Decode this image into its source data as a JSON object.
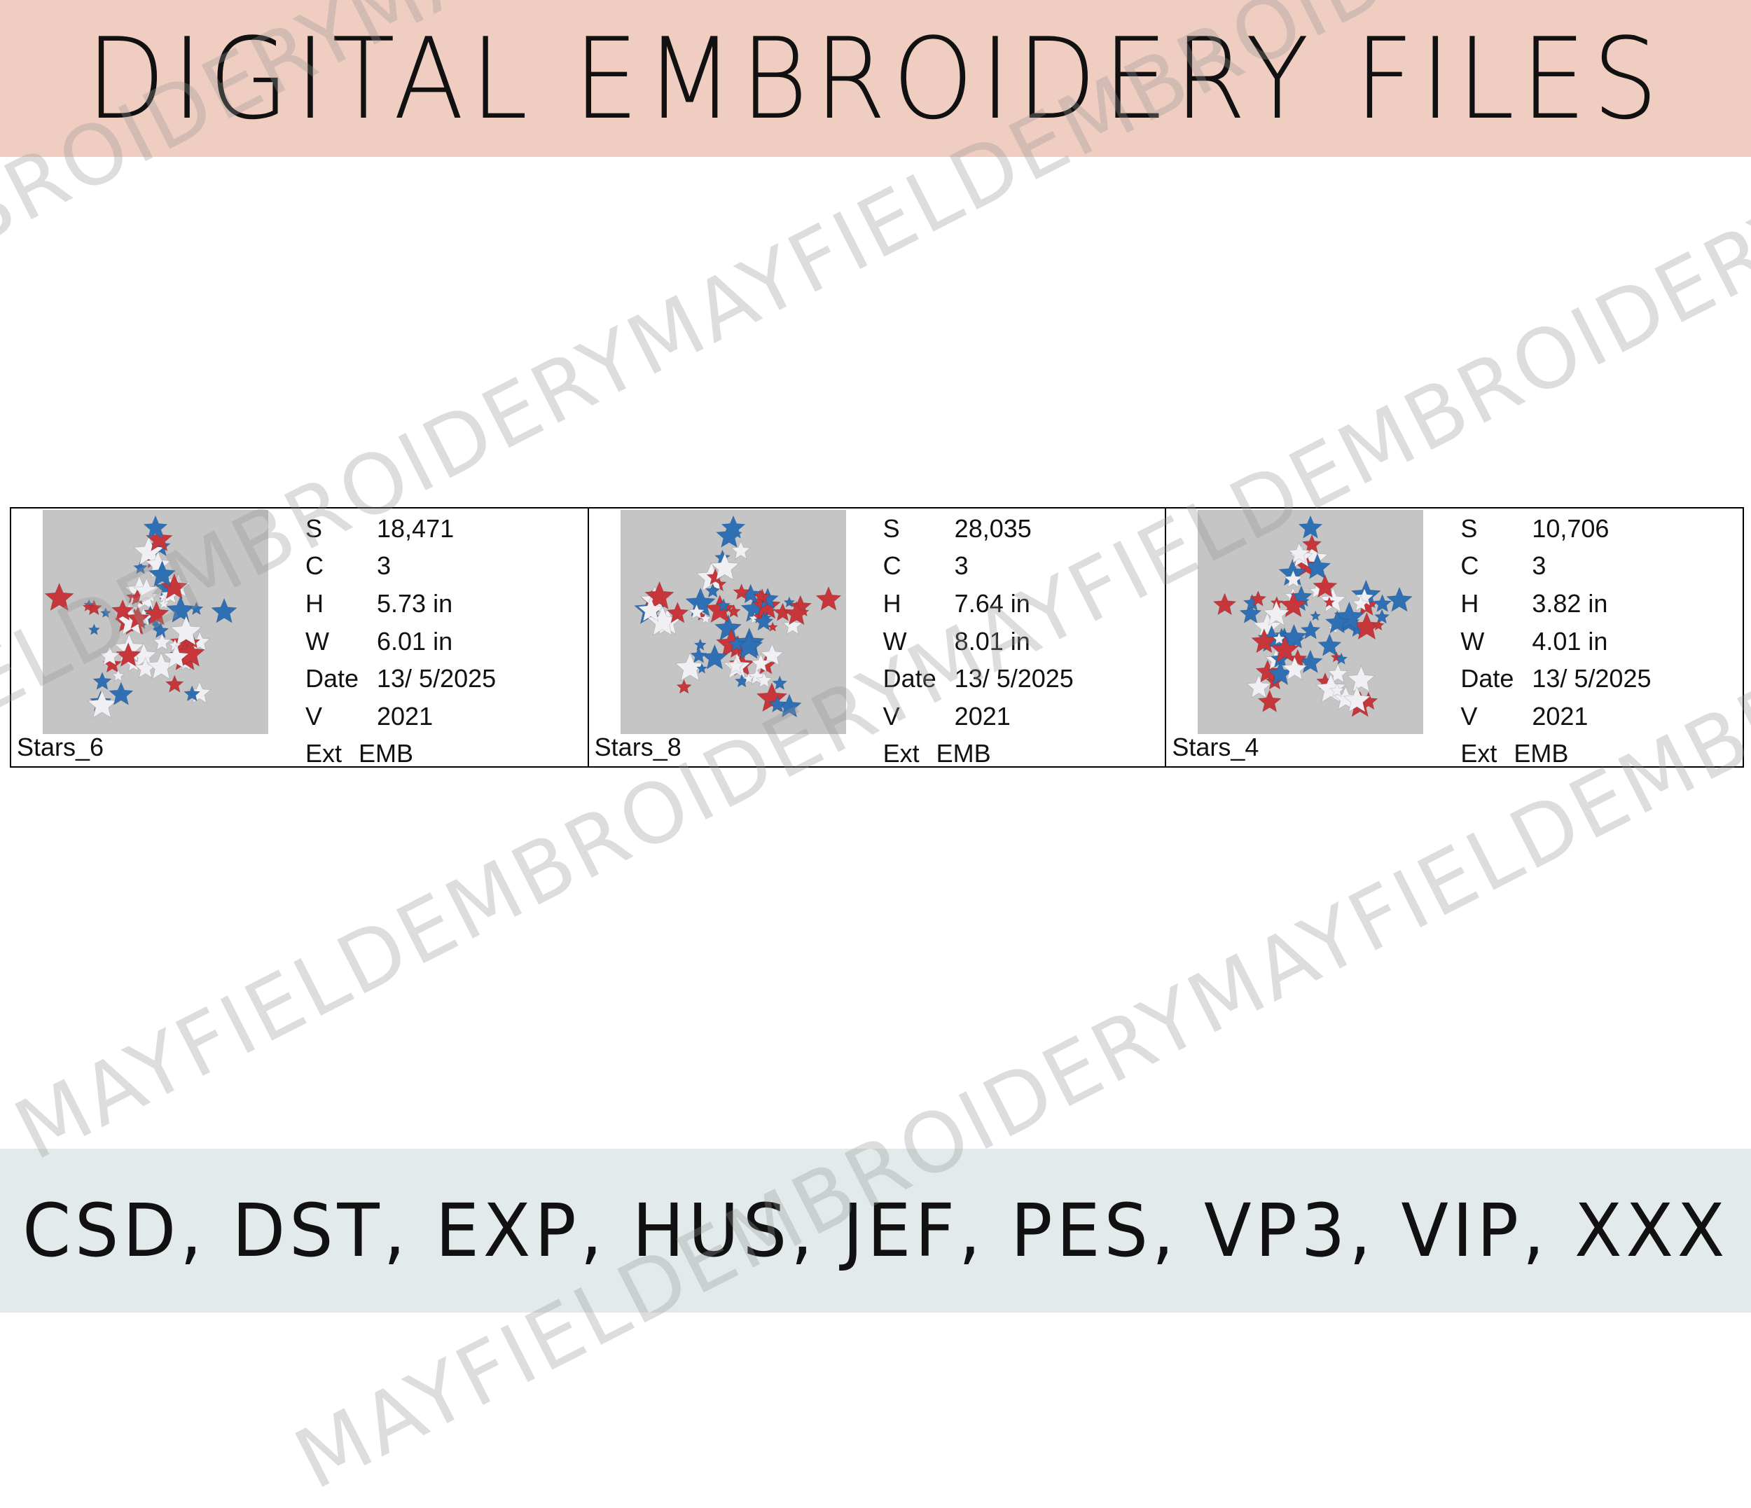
{
  "header": {
    "title": "DIGITAL EMBROIDERY FILES"
  },
  "footer": {
    "formats": "CSD, DST, EXP, HUS, JEF, PES, VP3, VIP, XXX"
  },
  "watermark": {
    "text": "MAYFIELDEMBROIDERYMAYFIELDEMBROIDERYMAYFIELDEMBROIDERY"
  },
  "colors": {
    "header_bg": "#efcdc0",
    "footer_bg": "#e3eaeb",
    "thumb_bg": "#c5c5c5",
    "star_red": "#c6363b",
    "star_blue": "#2f6fb3",
    "star_white": "#efeff4"
  },
  "designs": [
    {
      "name": "Stars_6",
      "icon": "star-design-thumbnail",
      "stats": [
        {
          "key": "S",
          "value": "18,471"
        },
        {
          "key": "C",
          "value": "3"
        },
        {
          "key": "H",
          "value": "5.73 in"
        },
        {
          "key": "W",
          "value": "6.01 in"
        },
        {
          "key": "Date",
          "value": "13/ 5/2025"
        },
        {
          "key": "V",
          "value": "2021"
        },
        {
          "key": "Ext",
          "value": "EMB"
        }
      ]
    },
    {
      "name": "Stars_8",
      "icon": "star-design-thumbnail",
      "stats": [
        {
          "key": "S",
          "value": "28,035"
        },
        {
          "key": "C",
          "value": "3"
        },
        {
          "key": "H",
          "value": "7.64 in"
        },
        {
          "key": "W",
          "value": "8.01 in"
        },
        {
          "key": "Date",
          "value": "13/ 5/2025"
        },
        {
          "key": "V",
          "value": "2021"
        },
        {
          "key": "Ext",
          "value": "EMB"
        }
      ]
    },
    {
      "name": "Stars_4",
      "icon": "star-design-thumbnail",
      "stats": [
        {
          "key": "S",
          "value": "10,706"
        },
        {
          "key": "C",
          "value": "3"
        },
        {
          "key": "H",
          "value": "3.82 in"
        },
        {
          "key": "W",
          "value": "4.01 in"
        },
        {
          "key": "Date",
          "value": "13/ 5/2025"
        },
        {
          "key": "V",
          "value": "2021"
        },
        {
          "key": "Ext",
          "value": "EMB"
        }
      ]
    }
  ]
}
